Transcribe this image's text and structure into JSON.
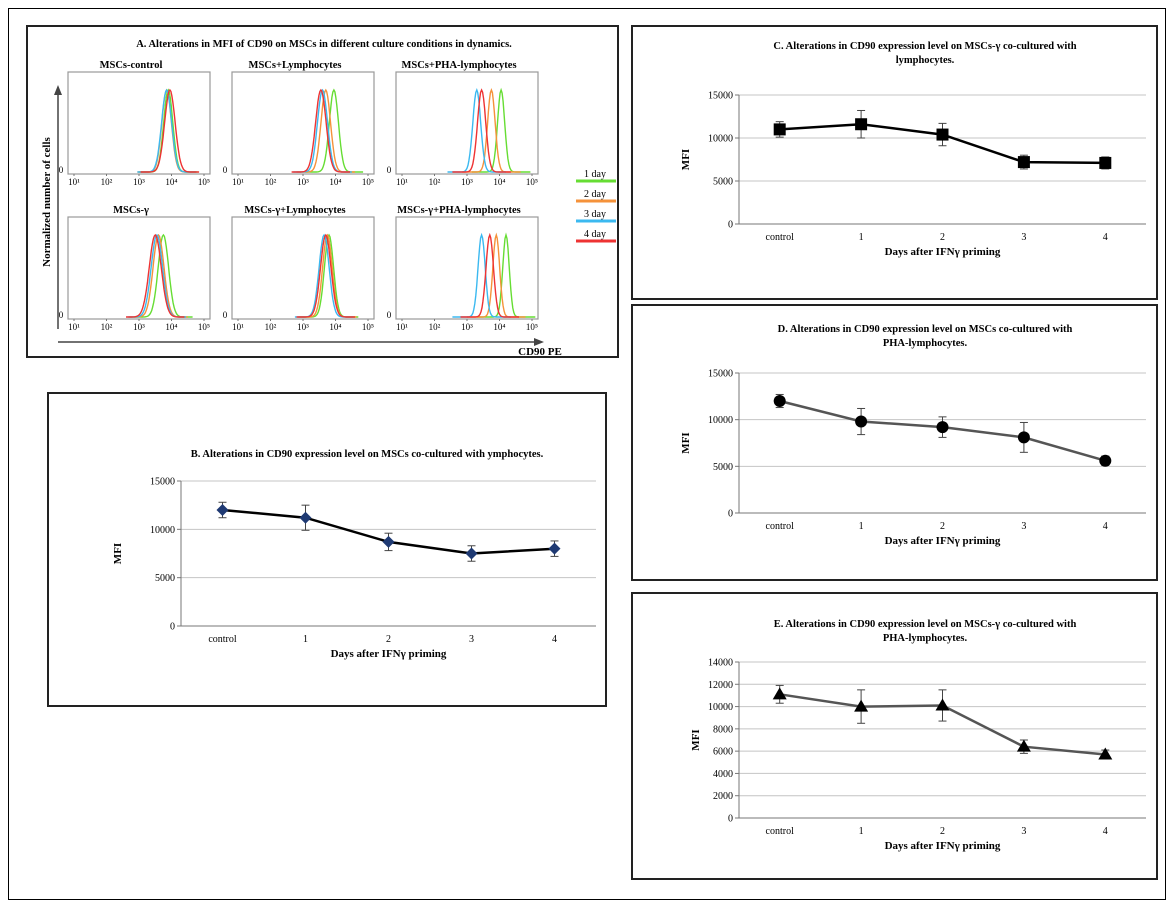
{
  "panel_a": {
    "title": "A. Alterations in MFI of CD90 on MSCs in different culture conditions in dynamics.",
    "ylabel": "Normalized number of cells",
    "xlabel": "CD90 PE",
    "axis_ticks": [
      "10¹",
      "10²",
      "10³",
      "10⁴",
      "10⁵"
    ],
    "zero_label": "0",
    "legend": [
      {
        "label": "1 day",
        "color": "#66dd33"
      },
      {
        "label": "2 day",
        "color": "#f5923a"
      },
      {
        "label": "3 day",
        "color": "#3bb9f0"
      },
      {
        "label": "4 day",
        "color": "#ee3333"
      }
    ],
    "subplots": [
      {
        "title": "MSCs-control",
        "peaks": [
          3.9,
          3.85,
          3.85,
          3.95
        ],
        "width": 0.28
      },
      {
        "title": "MSCs+Lymphocytes",
        "peaks": [
          3.95,
          3.7,
          3.6,
          3.55
        ],
        "width": 0.28
      },
      {
        "title": "MSCs+PHA-lymphocytes",
        "peaks": [
          4.05,
          3.75,
          3.3,
          3.45
        ],
        "width": 0.22
      },
      {
        "title": "MSCs-γ",
        "peaks": [
          3.75,
          3.6,
          3.55,
          3.5
        ],
        "width": 0.32
      },
      {
        "title": "MSCs-γ+Lymphocytes",
        "peaks": [
          3.8,
          3.75,
          3.65,
          3.7
        ],
        "width": 0.28
      },
      {
        "title": "MSCs-γ+PHA-lymphocytes",
        "peaks": [
          4.2,
          3.9,
          3.45,
          3.7
        ],
        "width": 0.2
      }
    ]
  },
  "chart_data": [
    {
      "id": "B",
      "type": "line",
      "title": "B. Alterations in CD90 expression level on MSCs co-cultured with ymphocytes.",
      "xlabel": "Days after IFNγ priming",
      "ylabel": "MFI",
      "categories": [
        "control",
        "1",
        "2",
        "3",
        "4"
      ],
      "values": [
        12000,
        11200,
        8700,
        7500,
        8000
      ],
      "errors": [
        800,
        1300,
        900,
        800,
        800
      ],
      "ylim": [
        0,
        15000
      ],
      "yticks": [
        0,
        5000,
        10000,
        15000
      ],
      "marker": "diamond",
      "marker_color": "#1f3a73",
      "line_color": "#000000",
      "grid": true
    },
    {
      "id": "C",
      "type": "line",
      "title": "C. Alterations in CD90 expression level on MSCs-γ co-cultured with lymphocytes.",
      "xlabel": "Days after IFNγ priming",
      "ylabel": "MFI",
      "categories": [
        "control",
        "1",
        "2",
        "3",
        "4"
      ],
      "values": [
        11000,
        11600,
        10400,
        7200,
        7100
      ],
      "errors": [
        900,
        1600,
        1300,
        800,
        700
      ],
      "ylim": [
        0,
        15000
      ],
      "yticks": [
        0,
        5000,
        10000,
        15000
      ],
      "marker": "square",
      "marker_color": "#000000",
      "line_color": "#000000",
      "grid": true
    },
    {
      "id": "D",
      "type": "line",
      "title": "D. Alterations in CD90 expression level on MSCs co-cultured with PHA-lymphocytes.",
      "xlabel": "Days after IFNγ priming",
      "ylabel": "MFI",
      "categories": [
        "control",
        "1",
        "2",
        "3",
        "4"
      ],
      "values": [
        12000,
        9800,
        9200,
        8100,
        5600
      ],
      "errors": [
        700,
        1400,
        1100,
        1600,
        500
      ],
      "ylim": [
        0,
        15000
      ],
      "yticks": [
        0,
        5000,
        10000,
        15000
      ],
      "marker": "circle",
      "marker_color": "#000000",
      "line_color": "#555555",
      "grid": true
    },
    {
      "id": "E",
      "type": "line",
      "title": "E. Alterations in CD90 expression level on MSCs-γ co-cultured with PHA-lymphocytes.",
      "xlabel": "Days after IFNγ priming",
      "ylabel": "MFI",
      "categories": [
        "control",
        "1",
        "2",
        "3",
        "4"
      ],
      "values": [
        11100,
        10000,
        10100,
        6400,
        5700
      ],
      "errors": [
        800,
        1500,
        1400,
        600,
        400
      ],
      "ylim": [
        0,
        14000
      ],
      "yticks": [
        0,
        2000,
        4000,
        6000,
        8000,
        10000,
        12000,
        14000
      ],
      "marker": "triangle",
      "marker_color": "#000000",
      "line_color": "#555555",
      "grid": true
    }
  ]
}
